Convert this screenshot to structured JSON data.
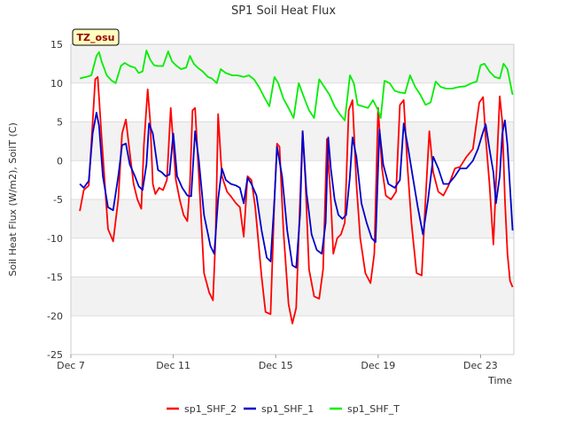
{
  "chart_data": {
    "type": "line",
    "title": "SP1 Soil Heat Flux",
    "xlabel": "Time",
    "ylabel": "Soil Heat Flux (W/m2), SoilT (C)",
    "badge": "TZ_osu",
    "x_ticks": [
      "Dec 7",
      "Dec 11",
      "Dec 15",
      "Dec 19",
      "Dec 23"
    ],
    "x_tick_days": [
      7,
      11,
      15,
      19,
      23
    ],
    "xlim": [
      7,
      24.3
    ],
    "ylim": [
      -25,
      15
    ],
    "y_ticks": [
      -25,
      -20,
      -15,
      -10,
      -5,
      0,
      5,
      10,
      15
    ],
    "grid": true,
    "legend_position": "bottom",
    "series": [
      {
        "name": "sp1_SHF_2",
        "color": "#ff0000",
        "x": [
          7.35,
          7.5,
          7.7,
          7.85,
          7.95,
          8.05,
          8.2,
          8.45,
          8.65,
          8.85,
          9.0,
          9.15,
          9.3,
          9.45,
          9.6,
          9.75,
          9.85,
          10.0,
          10.1,
          10.2,
          10.3,
          10.45,
          10.6,
          10.75,
          10.9,
          11.1,
          11.25,
          11.4,
          11.55,
          11.65,
          11.75,
          11.85,
          12.0,
          12.2,
          12.4,
          12.55,
          12.65,
          12.75,
          12.9,
          13.1,
          13.25,
          13.45,
          13.6,
          13.75,
          13.9,
          14.05,
          14.2,
          14.45,
          14.6,
          14.8,
          14.95,
          15.05,
          15.15,
          15.3,
          15.5,
          15.65,
          15.8,
          15.95,
          16.05,
          16.15,
          16.3,
          16.5,
          16.7,
          16.85,
          17.0,
          17.15,
          17.25,
          17.4,
          17.55,
          17.7,
          17.85,
          18.0,
          18.15,
          18.3,
          18.5,
          18.7,
          18.85,
          19.0,
          19.15,
          19.3,
          19.5,
          19.7,
          19.85,
          20.0,
          20.15,
          20.3,
          20.5,
          20.7,
          20.85,
          21.0,
          21.15,
          21.35,
          21.55,
          21.75,
          22.0,
          22.2,
          22.45,
          22.7,
          22.95,
          23.1,
          23.2,
          23.35,
          23.5,
          23.6,
          23.75,
          23.85,
          23.95,
          24.05,
          24.15,
          24.25
        ],
        "y": [
          -6.5,
          -3.8,
          -3.2,
          5.0,
          10.5,
          10.8,
          3.0,
          -8.8,
          -10.4,
          -5.0,
          3.5,
          5.3,
          1.0,
          -3.0,
          -5.0,
          -6.2,
          2.0,
          9.2,
          5.0,
          -3.0,
          -4.3,
          -3.5,
          -3.8,
          -2.5,
          6.8,
          -2.5,
          -5.0,
          -7.0,
          -7.8,
          -3.0,
          6.5,
          6.8,
          -2.0,
          -14.5,
          -17.0,
          -18.0,
          -10.0,
          6.0,
          -2.0,
          -4.0,
          -4.6,
          -5.5,
          -6.0,
          -9.8,
          -2.0,
          -2.5,
          -6.0,
          -15.0,
          -19.5,
          -19.8,
          -5.0,
          2.2,
          1.8,
          -9.0,
          -18.5,
          -21.0,
          -19.0,
          -5.0,
          3.8,
          -2.0,
          -14.0,
          -17.5,
          -17.8,
          -14.0,
          2.8,
          -5.0,
          -12.0,
          -10.0,
          -9.5,
          -8.0,
          6.5,
          7.8,
          -3.0,
          -10.0,
          -14.5,
          -15.8,
          -12.0,
          6.8,
          -1.0,
          -4.5,
          -5.0,
          -4.0,
          7.2,
          7.8,
          -1.0,
          -8.0,
          -14.5,
          -14.8,
          -5.0,
          3.8,
          -1.5,
          -4.0,
          -4.5,
          -3.2,
          -1.0,
          -0.8,
          0.5,
          1.5,
          7.5,
          8.2,
          3.0,
          -3.0,
          -10.8,
          -3.0,
          8.3,
          5.0,
          -5.0,
          -12.0,
          -15.5,
          -16.3
        ]
      },
      {
        "name": "sp1_SHF_1",
        "color": "#0000cc",
        "x": [
          7.35,
          7.5,
          7.7,
          7.85,
          8.0,
          8.1,
          8.25,
          8.45,
          8.65,
          8.85,
          9.0,
          9.15,
          9.3,
          9.5,
          9.65,
          9.8,
          9.95,
          10.05,
          10.2,
          10.4,
          10.55,
          10.7,
          10.85,
          11.0,
          11.15,
          11.35,
          11.55,
          11.7,
          11.85,
          12.0,
          12.2,
          12.45,
          12.6,
          12.75,
          12.9,
          13.05,
          13.25,
          13.45,
          13.6,
          13.75,
          13.9,
          14.05,
          14.25,
          14.45,
          14.65,
          14.8,
          14.95,
          15.05,
          15.25,
          15.45,
          15.65,
          15.8,
          15.95,
          16.05,
          16.2,
          16.4,
          16.6,
          16.8,
          16.95,
          17.05,
          17.15,
          17.3,
          17.45,
          17.6,
          17.75,
          17.9,
          18.0,
          18.15,
          18.35,
          18.55,
          18.75,
          18.9,
          19.05,
          19.2,
          19.4,
          19.65,
          19.85,
          20.0,
          20.15,
          20.35,
          20.55,
          20.75,
          20.95,
          21.15,
          21.35,
          21.55,
          21.75,
          22.0,
          22.2,
          22.45,
          22.7,
          22.9,
          23.05,
          23.2,
          23.35,
          23.5,
          23.6,
          23.75,
          23.85,
          23.95,
          24.05,
          24.15,
          24.25
        ],
        "y": [
          -3.0,
          -3.5,
          -2.6,
          3.5,
          6.2,
          4.5,
          -2.0,
          -6.0,
          -6.4,
          -2.0,
          2.0,
          2.2,
          -0.5,
          -2.0,
          -3.3,
          -3.8,
          -0.5,
          4.8,
          3.5,
          -1.2,
          -1.5,
          -2.0,
          -1.8,
          3.5,
          -2.0,
          -3.5,
          -4.5,
          -4.6,
          3.8,
          0.0,
          -7.0,
          -11.0,
          -12.0,
          -5.0,
          -1.0,
          -2.5,
          -3.0,
          -3.2,
          -3.5,
          -5.5,
          -2.2,
          -3.0,
          -4.5,
          -9.0,
          -12.5,
          -13.0,
          -5.0,
          1.8,
          -2.0,
          -9.0,
          -13.5,
          -13.8,
          -7.0,
          3.8,
          -4.0,
          -9.5,
          -11.5,
          -12.0,
          -8.0,
          3.0,
          -1.0,
          -5.0,
          -7.0,
          -7.5,
          -7.0,
          -2.0,
          3.0,
          0.5,
          -5.5,
          -8.0,
          -10.0,
          -10.5,
          4.0,
          -0.5,
          -3.0,
          -3.5,
          -2.5,
          4.8,
          2.0,
          -2.0,
          -6.0,
          -9.5,
          -5.0,
          0.5,
          -1.0,
          -3.0,
          -3.0,
          -2.0,
          -1.0,
          -1.0,
          0.0,
          1.5,
          3.2,
          4.7,
          1.5,
          -1.5,
          -5.5,
          -2.0,
          3.5,
          5.2,
          2.0,
          -3.5,
          -9.0
        ]
      },
      {
        "name": "sp1_SHF_T",
        "color": "#00ee00",
        "x": [
          7.35,
          7.6,
          7.8,
          8.0,
          8.1,
          8.2,
          8.4,
          8.6,
          8.75,
          8.95,
          9.1,
          9.3,
          9.5,
          9.65,
          9.8,
          9.95,
          10.1,
          10.25,
          10.4,
          10.6,
          10.8,
          10.95,
          11.1,
          11.3,
          11.5,
          11.65,
          11.8,
          11.95,
          12.15,
          12.35,
          12.5,
          12.7,
          12.85,
          13.05,
          13.3,
          13.5,
          13.75,
          13.95,
          14.15,
          14.35,
          14.55,
          14.75,
          14.95,
          15.1,
          15.3,
          15.5,
          15.7,
          15.9,
          16.1,
          16.3,
          16.5,
          16.7,
          16.9,
          17.1,
          17.3,
          17.5,
          17.7,
          17.9,
          18.05,
          18.2,
          18.4,
          18.6,
          18.8,
          19.0,
          19.1,
          19.25,
          19.45,
          19.65,
          19.85,
          20.05,
          20.25,
          20.45,
          20.65,
          20.85,
          21.05,
          21.25,
          21.45,
          21.65,
          21.9,
          22.15,
          22.4,
          22.65,
          22.85,
          23.0,
          23.15,
          23.35,
          23.55,
          23.75,
          23.9,
          24.05,
          24.25
        ],
        "y": [
          10.6,
          10.8,
          11.0,
          13.5,
          14.0,
          12.8,
          11.0,
          10.3,
          10.0,
          12.2,
          12.6,
          12.2,
          12.0,
          11.3,
          11.5,
          14.2,
          13.0,
          12.3,
          12.2,
          12.2,
          14.1,
          12.8,
          12.3,
          11.8,
          12.0,
          13.5,
          12.5,
          12.0,
          11.5,
          10.8,
          10.6,
          10.0,
          11.8,
          11.3,
          11.0,
          11.0,
          10.8,
          11.0,
          10.5,
          9.5,
          8.2,
          7.0,
          10.8,
          10.0,
          8.0,
          6.8,
          5.5,
          10.0,
          8.2,
          6.5,
          5.5,
          10.5,
          9.5,
          8.5,
          7.0,
          6.0,
          5.2,
          11.0,
          10.0,
          7.2,
          7.0,
          6.8,
          7.8,
          6.5,
          5.5,
          10.3,
          10.0,
          9.0,
          8.8,
          8.7,
          11.0,
          9.5,
          8.5,
          7.2,
          7.5,
          10.2,
          9.5,
          9.3,
          9.3,
          9.5,
          9.6,
          10.0,
          10.2,
          12.3,
          12.5,
          11.5,
          10.8,
          10.6,
          12.5,
          11.8,
          8.5
        ]
      }
    ]
  }
}
